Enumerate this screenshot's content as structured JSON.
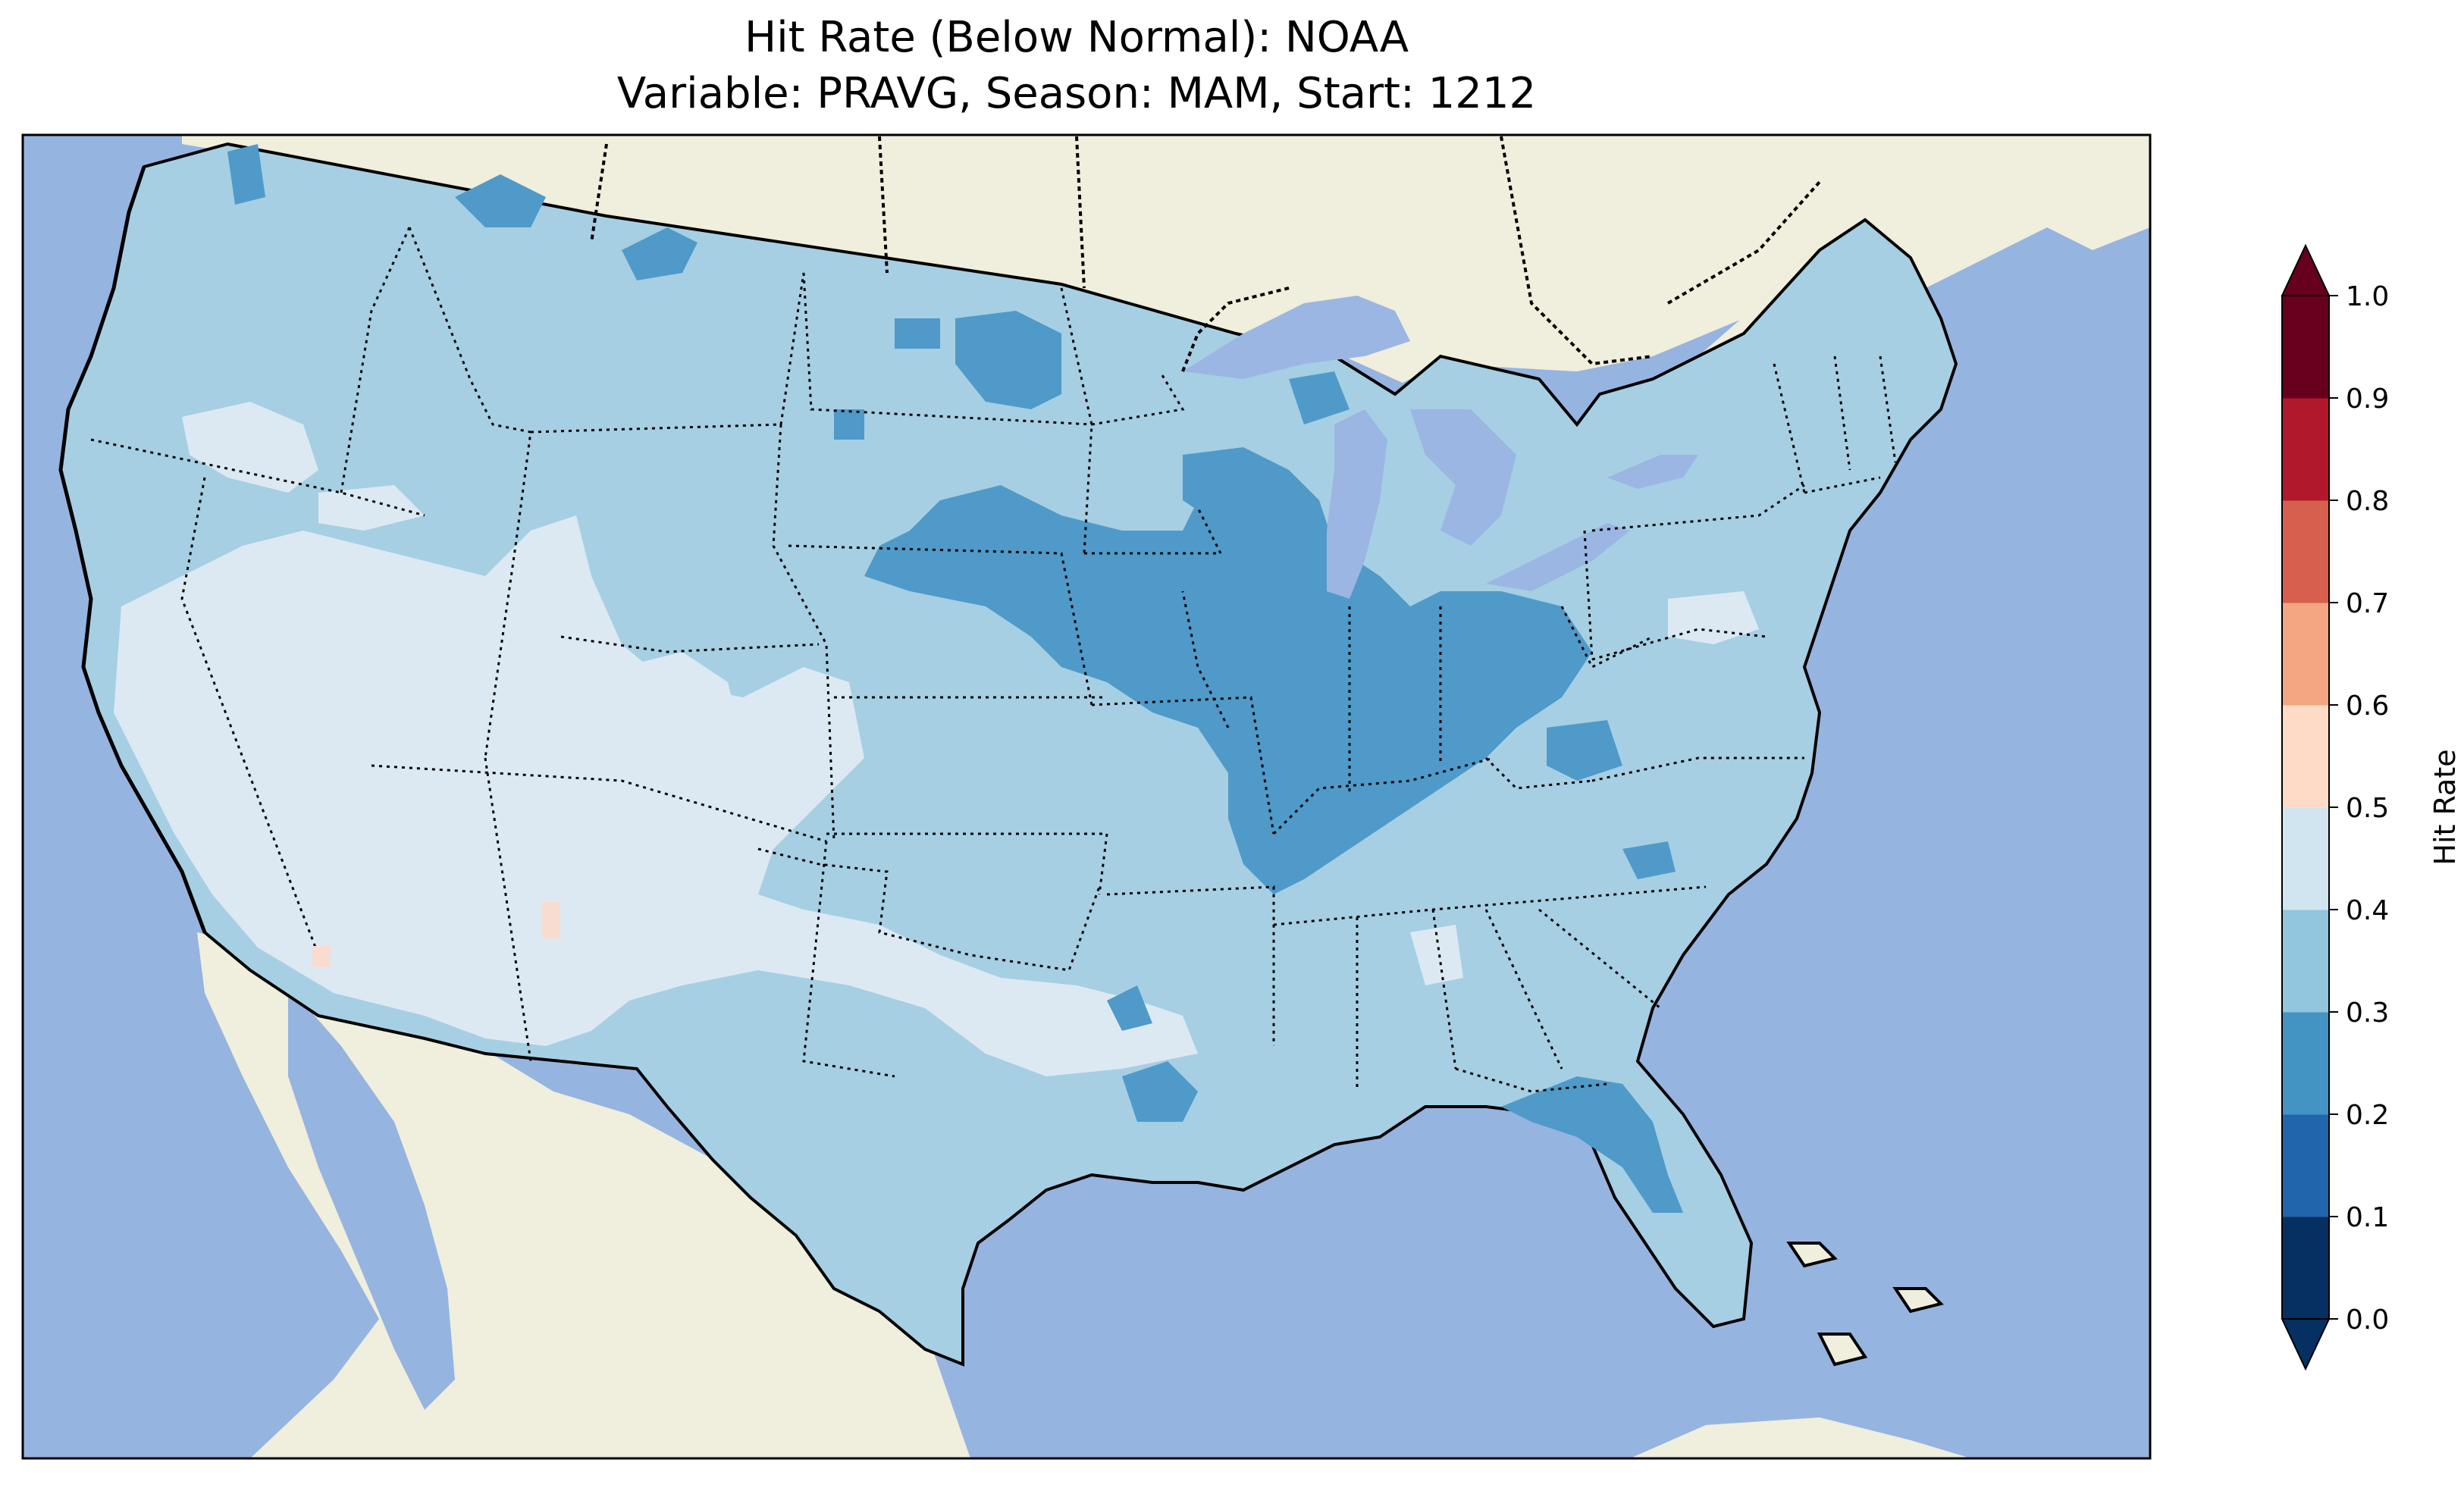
{
  "title": {
    "line1": "Hit Rate (Below Normal): NOAA",
    "line2": "Variable: PRAVG, Season: MAM, Start: 1212"
  },
  "colors": {
    "ocean": "#96b4e0",
    "land": "#f0eedc",
    "lake": "#9bb6e2",
    "coastline": "#000000",
    "border": "#000000"
  },
  "colorbar": {
    "label": "Hit Rate",
    "ticks": [
      "0.0",
      "0.1",
      "0.2",
      "0.3",
      "0.4",
      "0.5",
      "0.6",
      "0.7",
      "0.8",
      "0.9",
      "1.0"
    ],
    "bins": [
      {
        "range": [
          0.0,
          0.1
        ],
        "color": "#053061"
      },
      {
        "range": [
          0.1,
          0.2
        ],
        "color": "#2166ac"
      },
      {
        "range": [
          0.2,
          0.3
        ],
        "color": "#4393c3"
      },
      {
        "range": [
          0.3,
          0.4
        ],
        "color": "#92c5de"
      },
      {
        "range": [
          0.4,
          0.5
        ],
        "color": "#d1e5f0"
      },
      {
        "range": [
          0.5,
          0.6
        ],
        "color": "#fddbc7"
      },
      {
        "range": [
          0.6,
          0.7
        ],
        "color": "#f4a582"
      },
      {
        "range": [
          0.7,
          0.8
        ],
        "color": "#d6604d"
      },
      {
        "range": [
          0.8,
          0.9
        ],
        "color": "#b2182b"
      },
      {
        "range": [
          0.9,
          1.0
        ],
        "color": "#67001f"
      }
    ],
    "extend": "both"
  },
  "map_data": {
    "region": "Contiguous United States",
    "variable": "PRAVG",
    "season": "MAM",
    "start": "1212",
    "dominant_range": [
      0.3,
      0.4
    ],
    "areas": [
      {
        "name": "Western Great Basin / Nevada / Arizona",
        "range": [
          0.4,
          0.5
        ],
        "color": "#dde9f2"
      },
      {
        "name": "Upper Midwest / Ohio Valley",
        "range": [
          0.2,
          0.3
        ],
        "color": "#4f9ac9"
      },
      {
        "name": "Northern Rockies spots",
        "range": [
          0.2,
          0.3
        ],
        "color": "#4f9ac9"
      },
      {
        "name": "Florida Panhandle",
        "range": [
          0.2,
          0.3
        ],
        "color": "#4f9ac9"
      },
      {
        "name": "New Mexico / Arizona isolated points",
        "range": [
          0.5,
          0.6
        ],
        "color": "#f8dcd0"
      }
    ]
  }
}
